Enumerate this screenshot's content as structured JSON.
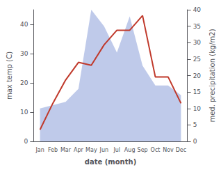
{
  "chart_data": {
    "type": "line",
    "categories": [
      "Jan",
      "Feb",
      "Mar",
      "Apr",
      "May",
      "Jun",
      "Jul",
      "Aug",
      "Sep",
      "Oct",
      "Nov",
      "Dec"
    ],
    "xlabel": "date (month)",
    "ylabel": "max temp (C)",
    "y2label": "med. precipitation (kg/m2)",
    "series": [
      {
        "type": "area",
        "color": "#b8c4e8",
        "axis": "y2",
        "values": [
          10,
          11,
          12,
          16,
          40,
          35,
          27,
          38,
          23,
          17,
          17,
          14
        ]
      },
      {
        "type": "line",
        "color": "#c0392b",
        "values": [
          4,
          13,
          21,
          27,
          26,
          33,
          38,
          38,
          43,
          22,
          22,
          13
        ]
      }
    ],
    "ylim": [
      0,
      45
    ],
    "yticks": [
      0,
      10,
      20,
      30,
      40
    ],
    "y2lim": [
      0,
      40
    ],
    "y2ticks": [
      0,
      5,
      10,
      15,
      20,
      25,
      30,
      35,
      40
    ],
    "grid": false
  }
}
